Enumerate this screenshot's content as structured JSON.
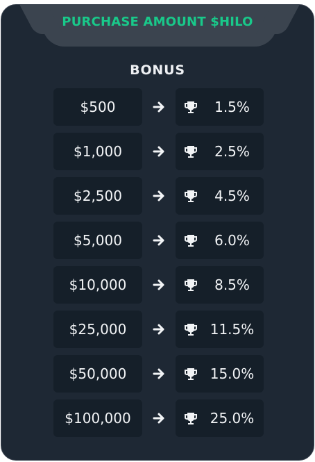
{
  "header": {
    "title": "PURCHASE AMOUNT $HILO"
  },
  "bonus_heading": "BONUS",
  "tiers": [
    {
      "amount": "$500",
      "bonus": "1.5%"
    },
    {
      "amount": "$1,000",
      "bonus": "2.5%"
    },
    {
      "amount": "$2,500",
      "bonus": "4.5%"
    },
    {
      "amount": "$5,000",
      "bonus": "6.0%"
    },
    {
      "amount": "$10,000",
      "bonus": "8.5%"
    },
    {
      "amount": "$25,000",
      "bonus": "11.5%"
    },
    {
      "amount": "$50,000",
      "bonus": "15.0%"
    },
    {
      "amount": "$100,000",
      "bonus": "25.0%"
    }
  ],
  "icons": {
    "arrow": "arrow-right-icon",
    "trophy": "trophy-icon"
  },
  "colors": {
    "card_background": "#1e2834",
    "header_tab": "#3b444f",
    "accent_green": "#19c98a",
    "cell_background": "#151f29",
    "text": "#f2f4f6"
  }
}
